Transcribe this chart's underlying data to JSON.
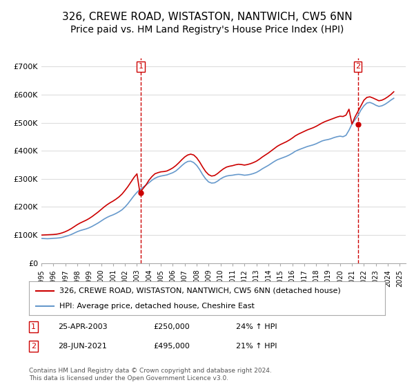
{
  "title": "326, CREWE ROAD, WISTASTON, NANTWICH, CW5 6NN",
  "subtitle": "Price paid vs. HM Land Registry's House Price Index (HPI)",
  "title_fontsize": 11,
  "subtitle_fontsize": 10,
  "ylabel_ticks": [
    "£0",
    "£100K",
    "£200K",
    "£300K",
    "£400K",
    "£500K",
    "£600K",
    "£700K"
  ],
  "ytick_values": [
    0,
    100000,
    200000,
    300000,
    400000,
    500000,
    600000,
    700000
  ],
  "ylim": [
    0,
    730000
  ],
  "xlim_start": 1995.0,
  "xlim_end": 2025.5,
  "xtick_years": [
    1995,
    1996,
    1997,
    1998,
    1999,
    2000,
    2001,
    2002,
    2003,
    2004,
    2005,
    2006,
    2007,
    2008,
    2009,
    2010,
    2011,
    2012,
    2013,
    2014,
    2015,
    2016,
    2017,
    2018,
    2019,
    2020,
    2021,
    2022,
    2023,
    2024,
    2025
  ],
  "red_color": "#cc0000",
  "blue_color": "#6699cc",
  "marker1_x": 2003.32,
  "marker1_y": 250000,
  "marker2_x": 2021.49,
  "marker2_y": 495000,
  "legend_label1": "326, CREWE ROAD, WISTASTON, NANTWICH, CW5 6NN (detached house)",
  "legend_label2": "HPI: Average price, detached house, Cheshire East",
  "annotation1_num": "1",
  "annotation2_num": "2",
  "info1_num": "1",
  "info1_date": "25-APR-2003",
  "info1_price": "£250,000",
  "info1_hpi": "24% ↑ HPI",
  "info2_num": "2",
  "info2_date": "28-JUN-2021",
  "info2_price": "£495,000",
  "info2_hpi": "21% ↑ HPI",
  "footnote": "Contains HM Land Registry data © Crown copyright and database right 2024.\nThis data is licensed under the Open Government Licence v3.0.",
  "background_color": "#ffffff",
  "grid_color": "#dddddd",
  "hpi_data_x": [
    1995.0,
    1995.25,
    1995.5,
    1995.75,
    1996.0,
    1996.25,
    1996.5,
    1996.75,
    1997.0,
    1997.25,
    1997.5,
    1997.75,
    1998.0,
    1998.25,
    1998.5,
    1998.75,
    1999.0,
    1999.25,
    1999.5,
    1999.75,
    2000.0,
    2000.25,
    2000.5,
    2000.75,
    2001.0,
    2001.25,
    2001.5,
    2001.75,
    2002.0,
    2002.25,
    2002.5,
    2002.75,
    2003.0,
    2003.25,
    2003.5,
    2003.75,
    2004.0,
    2004.25,
    2004.5,
    2004.75,
    2005.0,
    2005.25,
    2005.5,
    2005.75,
    2006.0,
    2006.25,
    2006.5,
    2006.75,
    2007.0,
    2007.25,
    2007.5,
    2007.75,
    2008.0,
    2008.25,
    2008.5,
    2008.75,
    2009.0,
    2009.25,
    2009.5,
    2009.75,
    2010.0,
    2010.25,
    2010.5,
    2010.75,
    2011.0,
    2011.25,
    2011.5,
    2011.75,
    2012.0,
    2012.25,
    2012.5,
    2012.75,
    2013.0,
    2013.25,
    2013.5,
    2013.75,
    2014.0,
    2014.25,
    2014.5,
    2014.75,
    2015.0,
    2015.25,
    2015.5,
    2015.75,
    2016.0,
    2016.25,
    2016.5,
    2016.75,
    2017.0,
    2017.25,
    2017.5,
    2017.75,
    2018.0,
    2018.25,
    2018.5,
    2018.75,
    2019.0,
    2019.25,
    2019.5,
    2019.75,
    2020.0,
    2020.25,
    2020.5,
    2020.75,
    2021.0,
    2021.25,
    2021.5,
    2021.75,
    2022.0,
    2022.25,
    2022.5,
    2022.75,
    2023.0,
    2023.25,
    2023.5,
    2023.75,
    2024.0,
    2024.25,
    2024.5
  ],
  "hpi_data_y": [
    88000,
    87500,
    87000,
    87500,
    88500,
    89000,
    90000,
    92000,
    95000,
    98000,
    102000,
    107000,
    112000,
    116000,
    119000,
    122000,
    126000,
    131000,
    137000,
    143000,
    150000,
    157000,
    163000,
    168000,
    172000,
    177000,
    183000,
    190000,
    200000,
    212000,
    226000,
    240000,
    252000,
    262000,
    270000,
    278000,
    286000,
    295000,
    302000,
    307000,
    310000,
    312000,
    314000,
    318000,
    322000,
    328000,
    337000,
    347000,
    356000,
    362000,
    363000,
    358000,
    348000,
    333000,
    315000,
    300000,
    289000,
    285000,
    286000,
    292000,
    300000,
    306000,
    310000,
    312000,
    313000,
    315000,
    316000,
    315000,
    313000,
    314000,
    316000,
    319000,
    323000,
    329000,
    336000,
    342000,
    348000,
    355000,
    362000,
    368000,
    372000,
    376000,
    380000,
    385000,
    391000,
    398000,
    403000,
    407000,
    411000,
    415000,
    418000,
    421000,
    425000,
    430000,
    435000,
    438000,
    440000,
    443000,
    447000,
    450000,
    452000,
    450000,
    455000,
    473000,
    495000,
    510000,
    525000,
    545000,
    560000,
    570000,
    572000,
    568000,
    562000,
    558000,
    560000,
    565000,
    572000,
    580000,
    587000
  ],
  "red_data_x": [
    1995.0,
    1995.25,
    1995.5,
    1995.75,
    1996.0,
    1996.25,
    1996.5,
    1996.75,
    1997.0,
    1997.25,
    1997.5,
    1997.75,
    1998.0,
    1998.25,
    1998.5,
    1998.75,
    1999.0,
    1999.25,
    1999.5,
    1999.75,
    2000.0,
    2000.25,
    2000.5,
    2000.75,
    2001.0,
    2001.25,
    2001.5,
    2001.75,
    2002.0,
    2002.25,
    2002.5,
    2002.75,
    2003.0,
    2003.25,
    2003.5,
    2003.75,
    2004.0,
    2004.25,
    2004.5,
    2004.75,
    2005.0,
    2005.25,
    2005.5,
    2005.75,
    2006.0,
    2006.25,
    2006.5,
    2006.75,
    2007.0,
    2007.25,
    2007.5,
    2007.75,
    2008.0,
    2008.25,
    2008.5,
    2008.75,
    2009.0,
    2009.25,
    2009.5,
    2009.75,
    2010.0,
    2010.25,
    2010.5,
    2010.75,
    2011.0,
    2011.25,
    2011.5,
    2011.75,
    2012.0,
    2012.25,
    2012.5,
    2012.75,
    2013.0,
    2013.25,
    2013.5,
    2013.75,
    2014.0,
    2014.25,
    2014.5,
    2014.75,
    2015.0,
    2015.25,
    2015.5,
    2015.75,
    2016.0,
    2016.25,
    2016.5,
    2016.75,
    2017.0,
    2017.25,
    2017.5,
    2017.75,
    2018.0,
    2018.25,
    2018.5,
    2018.75,
    2019.0,
    2019.25,
    2019.5,
    2019.75,
    2020.0,
    2020.25,
    2020.5,
    2020.75,
    2021.0,
    2021.25,
    2021.5,
    2021.75,
    2022.0,
    2022.25,
    2022.5,
    2022.75,
    2023.0,
    2023.25,
    2023.5,
    2023.75,
    2024.0,
    2024.25,
    2024.5
  ],
  "red_data_y": [
    100000,
    100500,
    101000,
    101500,
    102000,
    103000,
    105000,
    108000,
    112000,
    117000,
    123000,
    130000,
    137000,
    143000,
    148000,
    153000,
    159000,
    166000,
    174000,
    182000,
    191000,
    200000,
    208000,
    215000,
    221000,
    228000,
    236000,
    246000,
    259000,
    273000,
    289000,
    305000,
    318000,
    250000,
    265000,
    278000,
    295000,
    308000,
    318000,
    322000,
    325000,
    326000,
    328000,
    333000,
    339000,
    347000,
    357000,
    368000,
    378000,
    385000,
    388000,
    385000,
    375000,
    360000,
    342000,
    326000,
    315000,
    310000,
    312000,
    319000,
    328000,
    336000,
    342000,
    345000,
    347000,
    350000,
    352000,
    351000,
    349000,
    351000,
    354000,
    358000,
    363000,
    370000,
    378000,
    385000,
    392000,
    400000,
    408000,
    416000,
    422000,
    427000,
    432000,
    438000,
    445000,
    453000,
    459000,
    464000,
    469000,
    474000,
    478000,
    482000,
    487000,
    493000,
    499000,
    504000,
    508000,
    512000,
    516000,
    520000,
    523000,
    522000,
    527000,
    548000,
    495000,
    520000,
    540000,
    560000,
    580000,
    590000,
    592000,
    588000,
    583000,
    578000,
    580000,
    585000,
    592000,
    600000,
    610000
  ]
}
